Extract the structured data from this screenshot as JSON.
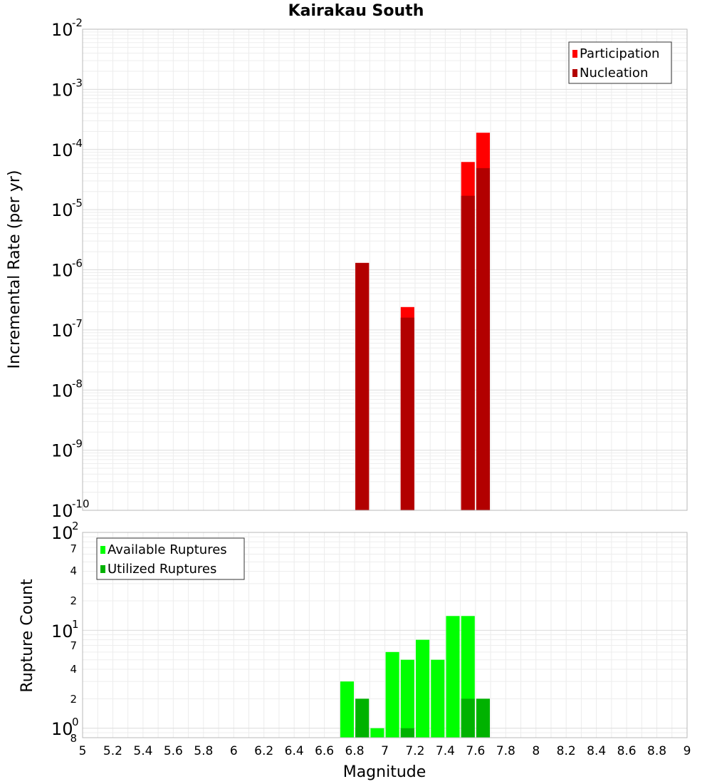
{
  "chart_data": [
    {
      "type": "bar",
      "title": "Kairakau South",
      "xlabel": "Magnitude",
      "ylabel": "Incremental Rate (per yr)",
      "yscale": "log",
      "ylim": [
        1e-10,
        0.01
      ],
      "xlim": [
        5,
        9
      ],
      "x_ticks": [
        "5",
        "5.2",
        "5.4",
        "5.6",
        "5.8",
        "6",
        "6.2",
        "6.4",
        "6.6",
        "6.8",
        "7",
        "7.2",
        "7.4",
        "7.6",
        "7.8",
        "8",
        "8.2",
        "8.4",
        "8.6",
        "8.8",
        "9"
      ],
      "y_ticks": [
        {
          "base": "10",
          "exp": "-2"
        },
        {
          "base": "10",
          "exp": "-3"
        },
        {
          "base": "10",
          "exp": "-4"
        },
        {
          "base": "10",
          "exp": "-5"
        },
        {
          "base": "10",
          "exp": "-6"
        },
        {
          "base": "10",
          "exp": "-7"
        },
        {
          "base": "10",
          "exp": "-8"
        },
        {
          "base": "10",
          "exp": "-9"
        },
        {
          "base": "10",
          "exp": "-10"
        }
      ],
      "legend_position": "top-right",
      "grid": true,
      "series": [
        {
          "name": "Participation",
          "color": "#ff0000",
          "x": [
            6.85,
            7.15,
            7.55,
            7.65
          ],
          "values": [
            1.3e-06,
            2.4e-07,
            6.2e-05,
            0.00019
          ]
        },
        {
          "name": "Nucleation",
          "color": "#b20000",
          "x": [
            6.85,
            7.15,
            7.55,
            7.65
          ],
          "values": [
            1.3e-06,
            1.6e-07,
            1.7e-05,
            4.9e-05
          ]
        }
      ]
    },
    {
      "type": "bar",
      "title": "",
      "xlabel": "Magnitude",
      "ylabel": "Rupture Count",
      "yscale": "log",
      "ylim": [
        0.8,
        100
      ],
      "xlim": [
        5,
        9
      ],
      "y_major_ticks": [
        {
          "base": "10",
          "exp": "2"
        },
        {
          "base": "10",
          "exp": "1"
        },
        {
          "base": "10",
          "exp": "0"
        }
      ],
      "y_minor_ticks": [
        "7",
        "4",
        "2",
        "7",
        "4",
        "2",
        "8"
      ],
      "legend_position": "top-left",
      "grid": true,
      "series": [
        {
          "name": "Available Ruptures",
          "color": "#00ff00",
          "x": [
            6.75,
            6.85,
            6.95,
            7.05,
            7.15,
            7.25,
            7.35,
            7.45,
            7.55
          ],
          "values": [
            3,
            1,
            1,
            6,
            5,
            8,
            5,
            14,
            14
          ]
        },
        {
          "name": "Utilized Ruptures",
          "color": "#00b200",
          "x": [
            6.85,
            7.15,
            7.55,
            7.65
          ],
          "values": [
            2,
            1,
            2,
            2
          ]
        }
      ]
    }
  ]
}
